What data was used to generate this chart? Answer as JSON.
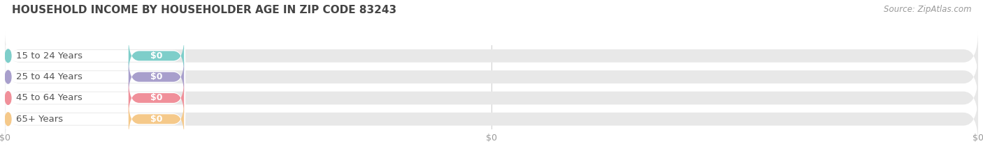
{
  "title": "HOUSEHOLD INCOME BY HOUSEHOLDER AGE IN ZIP CODE 83243",
  "source_text": "Source: ZipAtlas.com",
  "categories": [
    "15 to 24 Years",
    "25 to 44 Years",
    "45 to 64 Years",
    "65+ Years"
  ],
  "values": [
    0,
    0,
    0,
    0
  ],
  "bar_colors": [
    "#7ececa",
    "#a89fcc",
    "#f0909a",
    "#f5c98a"
  ],
  "bar_bg_color": "#e8e8e8",
  "background_color": "#ffffff",
  "title_fontsize": 11,
  "source_fontsize": 8.5,
  "label_fontsize": 9.5,
  "value_fontsize": 9,
  "xlim_max": 100,
  "xticks": [
    0,
    50,
    100
  ],
  "xtick_labels": [
    "$0",
    "$0",
    "$0"
  ]
}
